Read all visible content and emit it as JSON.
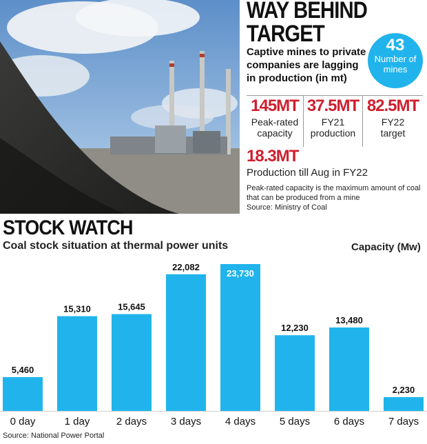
{
  "header": {
    "title_line1": "WAY BEHIND",
    "title_line2": "TARGET",
    "subtitle": "Captive mines to private companies are lagging in production (in mt)"
  },
  "mines_badge": {
    "number": "43",
    "label": "Number of mines"
  },
  "stats": [
    {
      "value": "145MT",
      "caption_line1": "Peak-rated",
      "caption_line2": "capacity"
    },
    {
      "value": "37.5MT",
      "caption_line1": "FY21",
      "caption_line2": "production"
    },
    {
      "value": "82.5MT",
      "caption_line1": "FY22",
      "caption_line2": "target"
    }
  ],
  "production_till": {
    "value": "18.3MT",
    "caption": "Production till Aug in FY22"
  },
  "note": {
    "text": "Peak-rated capacity is the maximum amount of coal that can be produced from a mine",
    "source": "Source: Ministry of Coal"
  },
  "stock_watch": {
    "title": "STOCK WATCH",
    "subtitle": "Coal stock situation at thermal power units",
    "source": "Source: National Power Portal"
  },
  "colors": {
    "bar": "#21b4ec",
    "highlight": "#cf1f2e"
  },
  "chart_data": {
    "type": "bar",
    "categories": [
      "0 day",
      "1 day",
      "2 days",
      "3 days",
      "4 days",
      "5 days",
      "6 days",
      "7 days"
    ],
    "values": [
      5460,
      15310,
      15645,
      22082,
      23730,
      12230,
      13480,
      2230
    ],
    "value_labels": [
      "5,460",
      "15,310",
      "15,645",
      "22,082",
      "23,730",
      "12,230",
      "13,480",
      "2,230"
    ],
    "title": "STOCK WATCH",
    "subtitle": "Coal stock situation at thermal power units",
    "ylabel": "Capacity (Mw)",
    "ylim": [
      0,
      23730
    ],
    "grid": false,
    "legend": "none"
  }
}
